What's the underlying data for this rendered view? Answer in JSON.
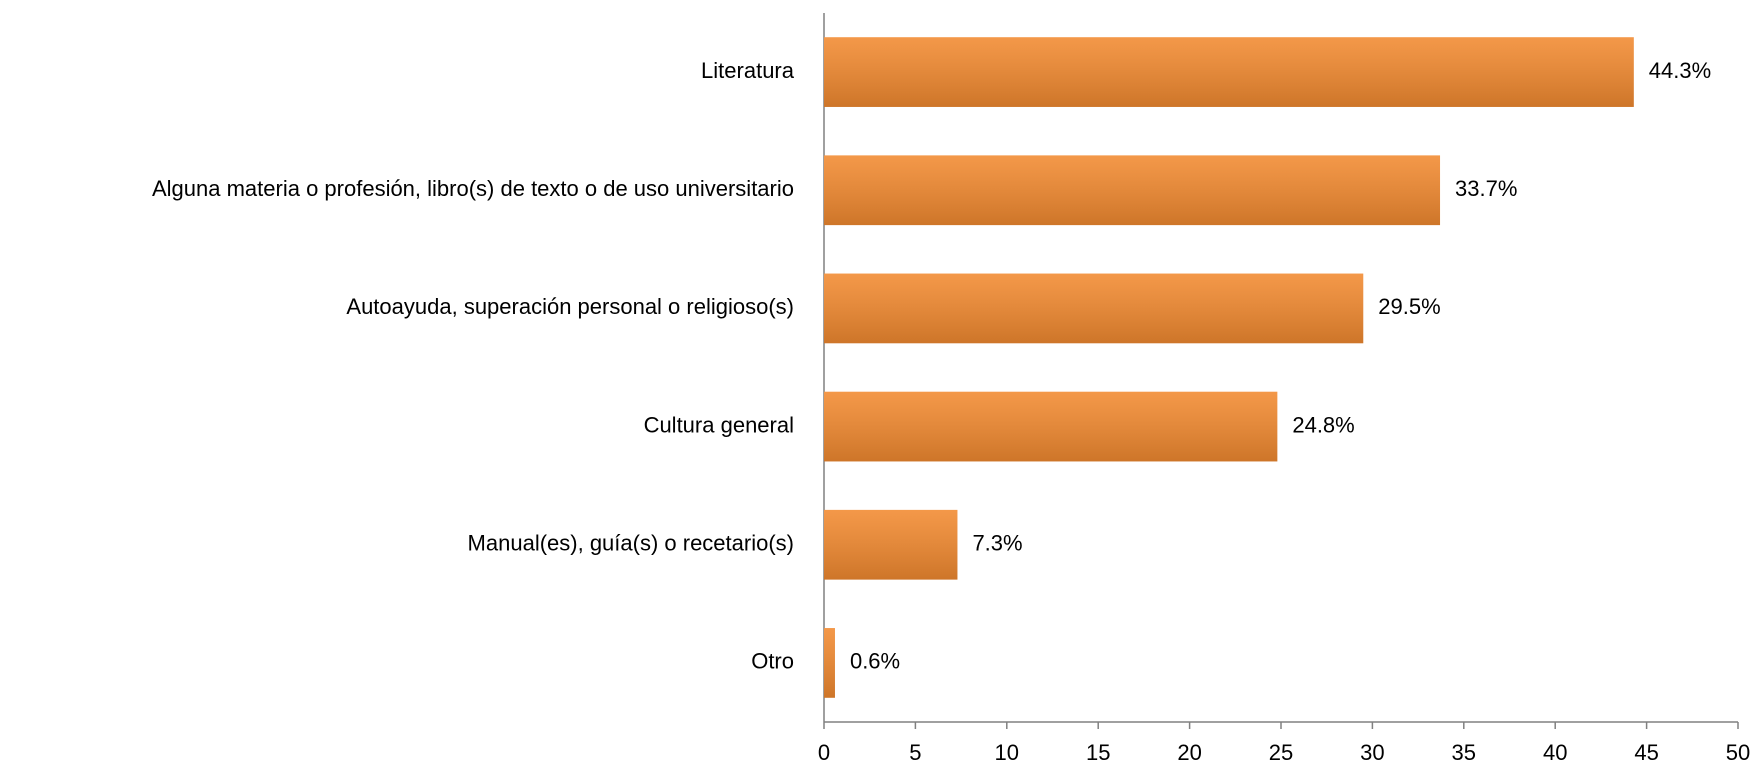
{
  "chart_data": {
    "type": "bar",
    "orientation": "horizontal",
    "categories": [
      "Literatura",
      "Alguna materia o profesión, libro(s) de texto o de uso universitario",
      "Autoayuda, superación personal o religioso(s)",
      "Cultura general",
      "Manual(es), guía(s) o recetario(s)",
      "Otro"
    ],
    "values": [
      44.3,
      33.7,
      29.5,
      24.8,
      7.3,
      0.6
    ],
    "value_labels": [
      "44.3%",
      "33.7%",
      "29.5%",
      "24.8%",
      "7.3%",
      "0.6%"
    ],
    "color": "#f28a30",
    "xlim": [
      0,
      50
    ],
    "xticks": [
      0,
      5,
      10,
      15,
      20,
      25,
      30,
      35,
      40,
      45,
      50
    ],
    "grid": false
  }
}
